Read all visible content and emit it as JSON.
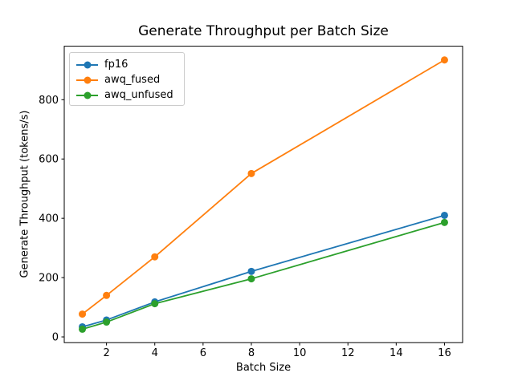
{
  "figure": {
    "background": "#ffffff",
    "axis_color": "#000000",
    "legend_border_color": "#cccccc"
  },
  "chart_data": {
    "type": "line",
    "title": "Generate Throughput per Batch Size",
    "xlabel": "Batch Size",
    "ylabel": "Generate Throughput (tokens/s)",
    "x": [
      1,
      2,
      4,
      8,
      16
    ],
    "series": [
      {
        "name": "fp16",
        "color": "#1f77b4",
        "values": [
          34,
          57,
          118,
          221,
          410
        ]
      },
      {
        "name": "awq_fused",
        "color": "#ff7f0e",
        "values": [
          77,
          140,
          270,
          551,
          934
        ]
      },
      {
        "name": "awq_unfused",
        "color": "#2ca02c",
        "values": [
          26,
          50,
          112,
          196,
          386
        ]
      }
    ],
    "xlim": [
      0.25,
      16.75
    ],
    "ylim": [
      -19.4,
      980.4
    ],
    "xticks": [
      2,
      4,
      6,
      8,
      10,
      12,
      14,
      16
    ],
    "yticks": [
      0,
      200,
      400,
      600,
      800
    ],
    "legend_position": "upper left",
    "grid": false,
    "marker": "o"
  }
}
